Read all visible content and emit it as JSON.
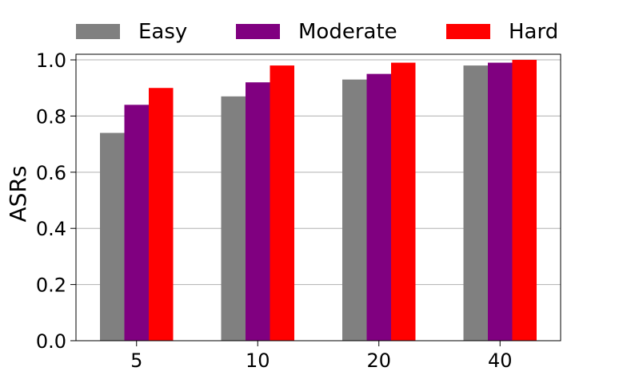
{
  "chart_data": {
    "type": "bar",
    "title": "",
    "xlabel": "",
    "ylabel": "ASRs",
    "categories": [
      "5",
      "10",
      "20",
      "40"
    ],
    "series": [
      {
        "name": "Easy",
        "color": "#808080",
        "values": [
          0.74,
          0.87,
          0.93,
          0.98
        ]
      },
      {
        "name": "Moderate",
        "color": "#800080",
        "values": [
          0.84,
          0.92,
          0.95,
          0.99
        ]
      },
      {
        "name": "Hard",
        "color": "#ff0000",
        "values": [
          0.9,
          0.98,
          0.99,
          1.0
        ]
      }
    ],
    "ylim": [
      0,
      1.02
    ],
    "yticks": [
      "0.0",
      "0.2",
      "0.4",
      "0.6",
      "0.8",
      "1.0"
    ],
    "grid": "horizontal",
    "legend": "top, above plot"
  }
}
